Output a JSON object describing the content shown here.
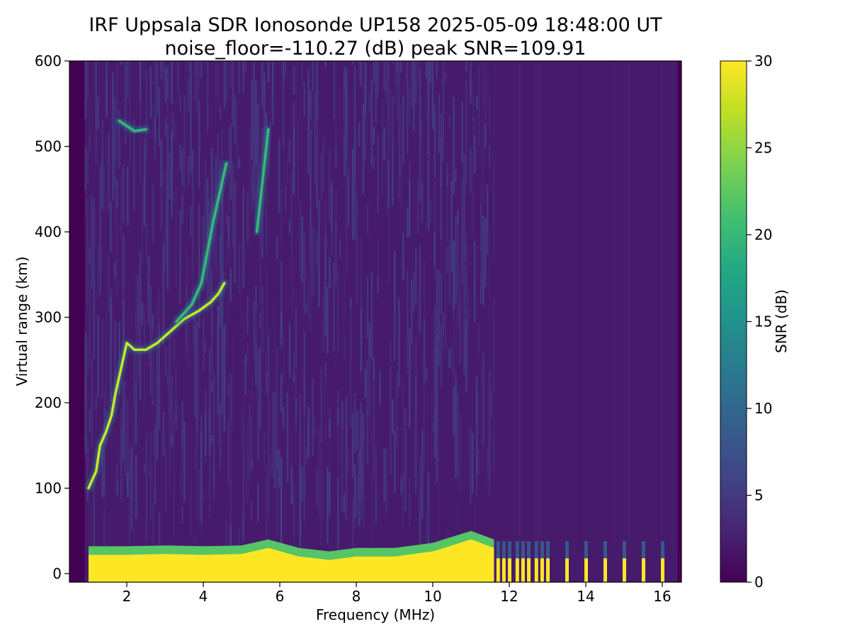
{
  "chart_data": {
    "type": "heatmap",
    "title": "IRF Uppsala SDR Ionosonde UP158 2025-05-09 18:48:00  UT",
    "subtitle": "noise_floor=-110.27 (dB) peak SNR=109.91",
    "xlabel": "Frequency (MHz)",
    "ylabel": "Virtual range (km)",
    "colorbar_label": "SNR (dB)",
    "colormap": "viridis",
    "xlim": [
      0.5,
      16.5
    ],
    "ylim": [
      -10,
      600
    ],
    "clim": [
      0,
      30
    ],
    "x_ticks": [
      2,
      4,
      6,
      8,
      10,
      12,
      14,
      16
    ],
    "y_ticks": [
      0,
      100,
      200,
      300,
      400,
      500,
      600
    ],
    "colorbar_ticks": [
      0,
      5,
      10,
      15,
      20,
      25,
      30
    ],
    "grid": false,
    "data_freq_range_mhz": [
      0.9,
      16.4
    ],
    "ground_clutter": [
      {
        "x": 1.0,
        "top_km": 32
      },
      {
        "x": 2.0,
        "top_km": 32
      },
      {
        "x": 3.0,
        "top_km": 33
      },
      {
        "x": 4.0,
        "top_km": 32
      },
      {
        "x": 5.0,
        "top_km": 33
      },
      {
        "x": 5.7,
        "top_km": 40
      },
      {
        "x": 6.5,
        "top_km": 30
      },
      {
        "x": 7.3,
        "top_km": 26
      },
      {
        "x": 8.0,
        "top_km": 30
      },
      {
        "x": 9.0,
        "top_km": 30
      },
      {
        "x": 10.0,
        "top_km": 36
      },
      {
        "x": 11.0,
        "top_km": 50
      },
      {
        "x": 11.6,
        "top_km": 40
      }
    ],
    "high_freq_spikes_mhz": [
      11.7,
      11.85,
      12.0,
      12.2,
      12.35,
      12.5,
      12.7,
      12.85,
      13.0,
      13.5,
      14.0,
      14.5,
      15.0,
      15.5,
      16.0
    ],
    "traces": [
      {
        "name": "",
        "points": [
          {
            "x": 1.0,
            "y": 100
          },
          {
            "x": 1.2,
            "y": 120
          },
          {
            "x": 1.3,
            "y": 150
          },
          {
            "x": 1.45,
            "y": 165
          },
          {
            "x": 1.6,
            "y": 185
          },
          {
            "x": 1.7,
            "y": 210
          },
          {
            "x": 1.85,
            "y": 240
          },
          {
            "x": 2.0,
            "y": 270
          },
          {
            "x": 2.2,
            "y": 262
          },
          {
            "x": 2.5,
            "y": 262
          },
          {
            "x": 2.8,
            "y": 270
          },
          {
            "x": 3.1,
            "y": 282
          },
          {
            "x": 3.5,
            "y": 298
          },
          {
            "x": 3.9,
            "y": 308
          },
          {
            "x": 4.2,
            "y": 318
          },
          {
            "x": 4.4,
            "y": 328
          },
          {
            "x": 4.55,
            "y": 340
          }
        ]
      },
      {
        "name": "",
        "points": [
          {
            "x": 3.3,
            "y": 295
          },
          {
            "x": 3.7,
            "y": 315
          },
          {
            "x": 3.95,
            "y": 340
          },
          {
            "x": 4.1,
            "y": 375
          },
          {
            "x": 4.25,
            "y": 410
          },
          {
            "x": 4.4,
            "y": 440
          },
          {
            "x": 4.6,
            "y": 480
          }
        ]
      },
      {
        "name": "",
        "points": [
          {
            "x": 5.4,
            "y": 400
          },
          {
            "x": 5.55,
            "y": 460
          },
          {
            "x": 5.7,
            "y": 520
          }
        ]
      },
      {
        "name": "",
        "points": [
          {
            "x": 1.8,
            "y": 530
          },
          {
            "x": 2.2,
            "y": 518
          },
          {
            "x": 2.5,
            "y": 520
          }
        ]
      }
    ]
  }
}
